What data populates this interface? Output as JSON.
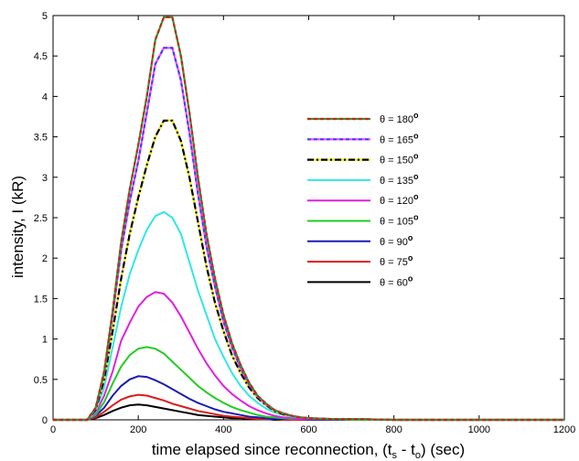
{
  "chart_data": {
    "type": "line",
    "title": "",
    "xlabel": "time elapsed since reconnection, (t_s - t_0) (sec)",
    "xlabel_parts": {
      "main": "time elapsed since reconnection, (t",
      "sub1": "s",
      "mid": " - t",
      "sub2": "o",
      "end": ") (sec)"
    },
    "ylabel": "intensity, I (kR)",
    "xlim": [
      0,
      1200
    ],
    "ylim": [
      0,
      5
    ],
    "xticks": [
      0,
      200,
      400,
      600,
      800,
      1000,
      1200
    ],
    "yticks": [
      0,
      0.5,
      1,
      1.5,
      2,
      2.5,
      3,
      3.5,
      4,
      4.5,
      5
    ],
    "xtick_labels": [
      "0",
      "200",
      "400",
      "600",
      "800",
      "1000",
      "1200"
    ],
    "ytick_labels": [
      "0",
      "0.5",
      "1",
      "1.5",
      "2",
      "2.5",
      "3",
      "3.5",
      "4",
      "4.5",
      "5"
    ],
    "grid": false,
    "legend_position": "center-right",
    "x": [
      0,
      50,
      80,
      100,
      120,
      140,
      160,
      180,
      200,
      220,
      240,
      260,
      280,
      300,
      320,
      340,
      360,
      380,
      400,
      420,
      440,
      460,
      480,
      500,
      520,
      540,
      560,
      580,
      600,
      650,
      700,
      800,
      900,
      1000,
      1100,
      1200
    ],
    "series": [
      {
        "name": "θ = 180°",
        "theta": "θ = 180",
        "deg": "o",
        "color": "#cc2222",
        "color2": "#2a9d2a",
        "dash": "",
        "values": [
          0,
          0,
          0,
          0.15,
          0.6,
          1.35,
          2.2,
          2.85,
          3.4,
          4.0,
          4.7,
          4.98,
          4.98,
          4.5,
          3.8,
          3.0,
          2.3,
          1.75,
          1.3,
          0.95,
          0.68,
          0.46,
          0.3,
          0.2,
          0.12,
          0.08,
          0.05,
          0.03,
          0.02,
          0.01,
          0.01,
          0,
          0,
          0,
          0,
          0
        ]
      },
      {
        "name": "θ = 165°",
        "theta": "θ = 165",
        "deg": "o",
        "color": "#4040ff",
        "color2": "#ff44ff",
        "dash": "",
        "values": [
          0,
          0,
          0,
          0.14,
          0.58,
          1.3,
          2.1,
          2.7,
          3.2,
          3.8,
          4.4,
          4.6,
          4.6,
          4.2,
          3.55,
          2.8,
          2.15,
          1.65,
          1.22,
          0.9,
          0.64,
          0.44,
          0.29,
          0.19,
          0.12,
          0.08,
          0.05,
          0.03,
          0.02,
          0.01,
          0.01,
          0,
          0,
          0,
          0,
          0
        ]
      },
      {
        "name": "θ = 150°",
        "theta": "θ = 150",
        "deg": "o",
        "color": "#000000",
        "color2": "#e6e600",
        "dash": "7,3,2,3",
        "values": [
          0,
          0,
          0,
          0.12,
          0.5,
          1.1,
          1.75,
          2.3,
          2.75,
          3.15,
          3.5,
          3.7,
          3.7,
          3.45,
          3.0,
          2.45,
          1.9,
          1.45,
          1.1,
          0.8,
          0.58,
          0.4,
          0.27,
          0.18,
          0.11,
          0.07,
          0.05,
          0.03,
          0.02,
          0.01,
          0.01,
          0,
          0,
          0,
          0,
          0
        ]
      },
      {
        "name": "θ = 135°",
        "theta": "θ = 135",
        "deg": "o",
        "color": "#33e6e6",
        "color2": "",
        "dash": "",
        "values": [
          0,
          0,
          0,
          0.1,
          0.4,
          0.9,
          1.4,
          1.8,
          2.1,
          2.35,
          2.52,
          2.57,
          2.5,
          2.3,
          1.95,
          1.6,
          1.3,
          1.0,
          0.78,
          0.58,
          0.42,
          0.3,
          0.21,
          0.14,
          0.09,
          0.06,
          0.04,
          0.03,
          0.02,
          0.01,
          0.01,
          0,
          0,
          0,
          0,
          0
        ]
      },
      {
        "name": "θ = 120°",
        "theta": "θ = 120",
        "deg": "o",
        "color": "#e020e0",
        "color2": "",
        "dash": "",
        "values": [
          0,
          0,
          0,
          0.08,
          0.3,
          0.6,
          0.98,
          1.2,
          1.4,
          1.52,
          1.58,
          1.56,
          1.45,
          1.28,
          1.08,
          0.88,
          0.7,
          0.55,
          0.42,
          0.32,
          0.24,
          0.17,
          0.12,
          0.08,
          0.05,
          0.03,
          0.02,
          0.01,
          0.01,
          0.01,
          0.01,
          0,
          0,
          0,
          0,
          0
        ]
      },
      {
        "name": "θ = 105°",
        "theta": "θ = 105",
        "deg": "o",
        "color": "#22cc22",
        "color2": "",
        "dash": "",
        "values": [
          0,
          0,
          0,
          0.06,
          0.22,
          0.45,
          0.66,
          0.8,
          0.88,
          0.9,
          0.88,
          0.82,
          0.72,
          0.62,
          0.52,
          0.42,
          0.34,
          0.27,
          0.21,
          0.16,
          0.12,
          0.09,
          0.06,
          0.04,
          0.03,
          0.02,
          0.01,
          0.01,
          0.01,
          0.01,
          0,
          0,
          0,
          0,
          0,
          0
        ]
      },
      {
        "name": "θ = 90°",
        "theta": "θ = 90",
        "deg": "o",
        "color": "#1c1cb4",
        "color2": "",
        "dash": "",
        "values": [
          0,
          0,
          0,
          0.05,
          0.15,
          0.3,
          0.42,
          0.5,
          0.54,
          0.53,
          0.49,
          0.44,
          0.38,
          0.32,
          0.26,
          0.21,
          0.17,
          0.13,
          0.1,
          0.08,
          0.06,
          0.04,
          0.03,
          0.02,
          0.01,
          0.01,
          0.01,
          0.01,
          0,
          0,
          0,
          0,
          0,
          0,
          0,
          0
        ]
      },
      {
        "name": "θ = 75°",
        "theta": "θ = 75",
        "deg": "o",
        "color": "#dd1c1c",
        "color2": "",
        "dash": "",
        "values": [
          0,
          0,
          0,
          0.03,
          0.1,
          0.18,
          0.25,
          0.29,
          0.31,
          0.3,
          0.27,
          0.24,
          0.2,
          0.17,
          0.14,
          0.11,
          0.09,
          0.07,
          0.05,
          0.04,
          0.03,
          0.02,
          0.01,
          0.01,
          0.01,
          0,
          0,
          0,
          0,
          0,
          0,
          0,
          0,
          0,
          0,
          0
        ]
      },
      {
        "name": "θ = 60°",
        "theta": "θ = 60",
        "deg": "o",
        "color": "#000000",
        "color2": "",
        "dash": "",
        "values": [
          0,
          0,
          0,
          0.02,
          0.06,
          0.11,
          0.15,
          0.18,
          0.19,
          0.18,
          0.16,
          0.14,
          0.12,
          0.1,
          0.08,
          0.06,
          0.05,
          0.04,
          0.03,
          0.02,
          0.02,
          0.01,
          0.01,
          0.01,
          0,
          0,
          0,
          0,
          0,
          0,
          0,
          0,
          0,
          0,
          0,
          0
        ]
      }
    ]
  }
}
